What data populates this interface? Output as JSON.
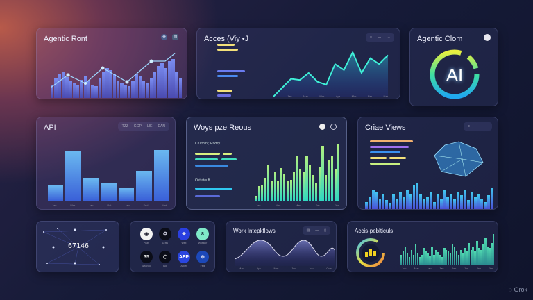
{
  "panels": {
    "p1": {
      "title": "Agentic Ront",
      "bars": [
        30,
        45,
        55,
        62,
        48,
        40,
        35,
        30,
        42,
        50,
        38,
        30,
        28,
        45,
        60,
        70,
        65,
        55,
        40,
        35,
        30,
        28,
        40,
        55,
        50,
        38,
        35,
        45,
        60,
        75,
        80,
        70,
        85,
        90,
        60,
        45
      ]
    },
    "p2": {
      "title": "Acces (Viy •J",
      "tools": [
        "≡",
        "—",
        "⋯"
      ],
      "xticks": [
        "Jan",
        "Mar",
        "Mar",
        "Apr",
        "Mar",
        "Fer",
        "Nar"
      ],
      "yticks": [
        "100",
        "80",
        "60",
        "40",
        "20",
        "0"
      ],
      "line": [
        0,
        15,
        30,
        28,
        40,
        25,
        20,
        55,
        45,
        75,
        40,
        65,
        55,
        70
      ]
    },
    "p3": {
      "title": "Agentic Clom",
      "center": "AI"
    },
    "p4": {
      "title": "API",
      "tools": [
        "TZZ",
        "GGP",
        "LIE",
        "DAN"
      ],
      "xticks": [
        "Jan",
        "Mar",
        "Jan",
        "Pat",
        "Jan",
        "Fed",
        "Mat"
      ],
      "yticks": [
        "25",
        "20",
        "15",
        "10",
        "5",
        "0"
      ],
      "bars": [
        22,
        70,
        32,
        26,
        18,
        42,
        72
      ]
    },
    "p5": {
      "title": "Woys pze Reous",
      "label1": "Cruftotn ; Rodity",
      "label2": "Oktutteuft",
      "xticks": [
        "Jan",
        "Mar",
        "Mar",
        "Fer",
        "Jun"
      ],
      "yticks": [
        "250",
        "200",
        "150",
        "100",
        "50",
        "0"
      ],
      "bars": [
        8,
        22,
        25,
        35,
        55,
        30,
        45,
        30,
        50,
        42,
        30,
        32,
        45,
        70,
        48,
        45,
        70,
        55,
        40,
        28,
        52,
        85,
        40,
        62,
        70,
        48,
        88
      ]
    },
    "p6": {
      "title": "Criae Views",
      "tools": [
        "≡",
        "—",
        "⋯"
      ],
      "bars": [
        15,
        25,
        40,
        35,
        22,
        30,
        18,
        12,
        30,
        20,
        35,
        25,
        40,
        30,
        48,
        55,
        30,
        20,
        25,
        35,
        15,
        30,
        22,
        38,
        25,
        30,
        20,
        35,
        28,
        40,
        18,
        35,
        25,
        30,
        22,
        15,
        28,
        45
      ]
    },
    "p7": {
      "value": "67146"
    },
    "p8": {
      "icons": [
        {
          "name": "Pearl",
          "glyph": "◉",
          "bg": "#f2f2f2",
          "fg": "#223"
        },
        {
          "name": "Draw",
          "glyph": "❂",
          "bg": "#0b0d18",
          "fg": "#ccd"
        },
        {
          "name": "Wex",
          "glyph": "❖",
          "bg": "#2a3fe0",
          "fg": "#dde"
        },
        {
          "name": "Wosshir",
          "glyph": "8",
          "bg": "#7fe8c8",
          "fg": "#123"
        },
        {
          "name": "Wearcky",
          "glyph": "35",
          "bg": "#0b0d18",
          "fg": "#eee"
        },
        {
          "name": "Boll",
          "glyph": "⬡",
          "bg": "#0b0d18",
          "fg": "#eee"
        },
        {
          "name": "Apper",
          "glyph": "AFP",
          "bg": "#2a46e0",
          "fg": "#fff"
        },
        {
          "name": "Fets",
          "glyph": "⊕",
          "bg": "#1c48b8",
          "fg": "#dde"
        }
      ]
    },
    "p9": {
      "title": "Work Intepkflows",
      "tools": [
        "▤",
        "—",
        "▯"
      ],
      "xticks": [
        "Mar",
        "Apr",
        "Mar",
        "Jun",
        "Jun",
        "Ocer"
      ],
      "yticks": [
        "40",
        "30",
        "20",
        "10",
        "0"
      ]
    },
    "p10": {
      "title": "Accis-peblticuls",
      "xticks": [
        "Jun",
        "Mar",
        "Jan",
        "Jan",
        "Jan",
        "Jun",
        "Jan",
        "Jun"
      ],
      "bars": [
        30,
        40,
        55,
        35,
        25,
        45,
        30,
        60,
        35,
        25,
        30,
        50,
        40,
        35,
        28,
        55,
        30,
        45,
        38,
        30,
        25,
        50,
        45,
        40,
        35,
        60,
        55,
        40,
        30,
        45,
        35,
        50,
        40,
        65,
        45,
        55,
        40,
        70,
        50,
        45,
        60,
        80,
        55,
        50,
        65,
        90
      ]
    }
  },
  "watermark": "Grok",
  "colors": {
    "accent": "#35e6c8",
    "blue": "#4a6cf0",
    "yellow": "#f3e07a"
  }
}
